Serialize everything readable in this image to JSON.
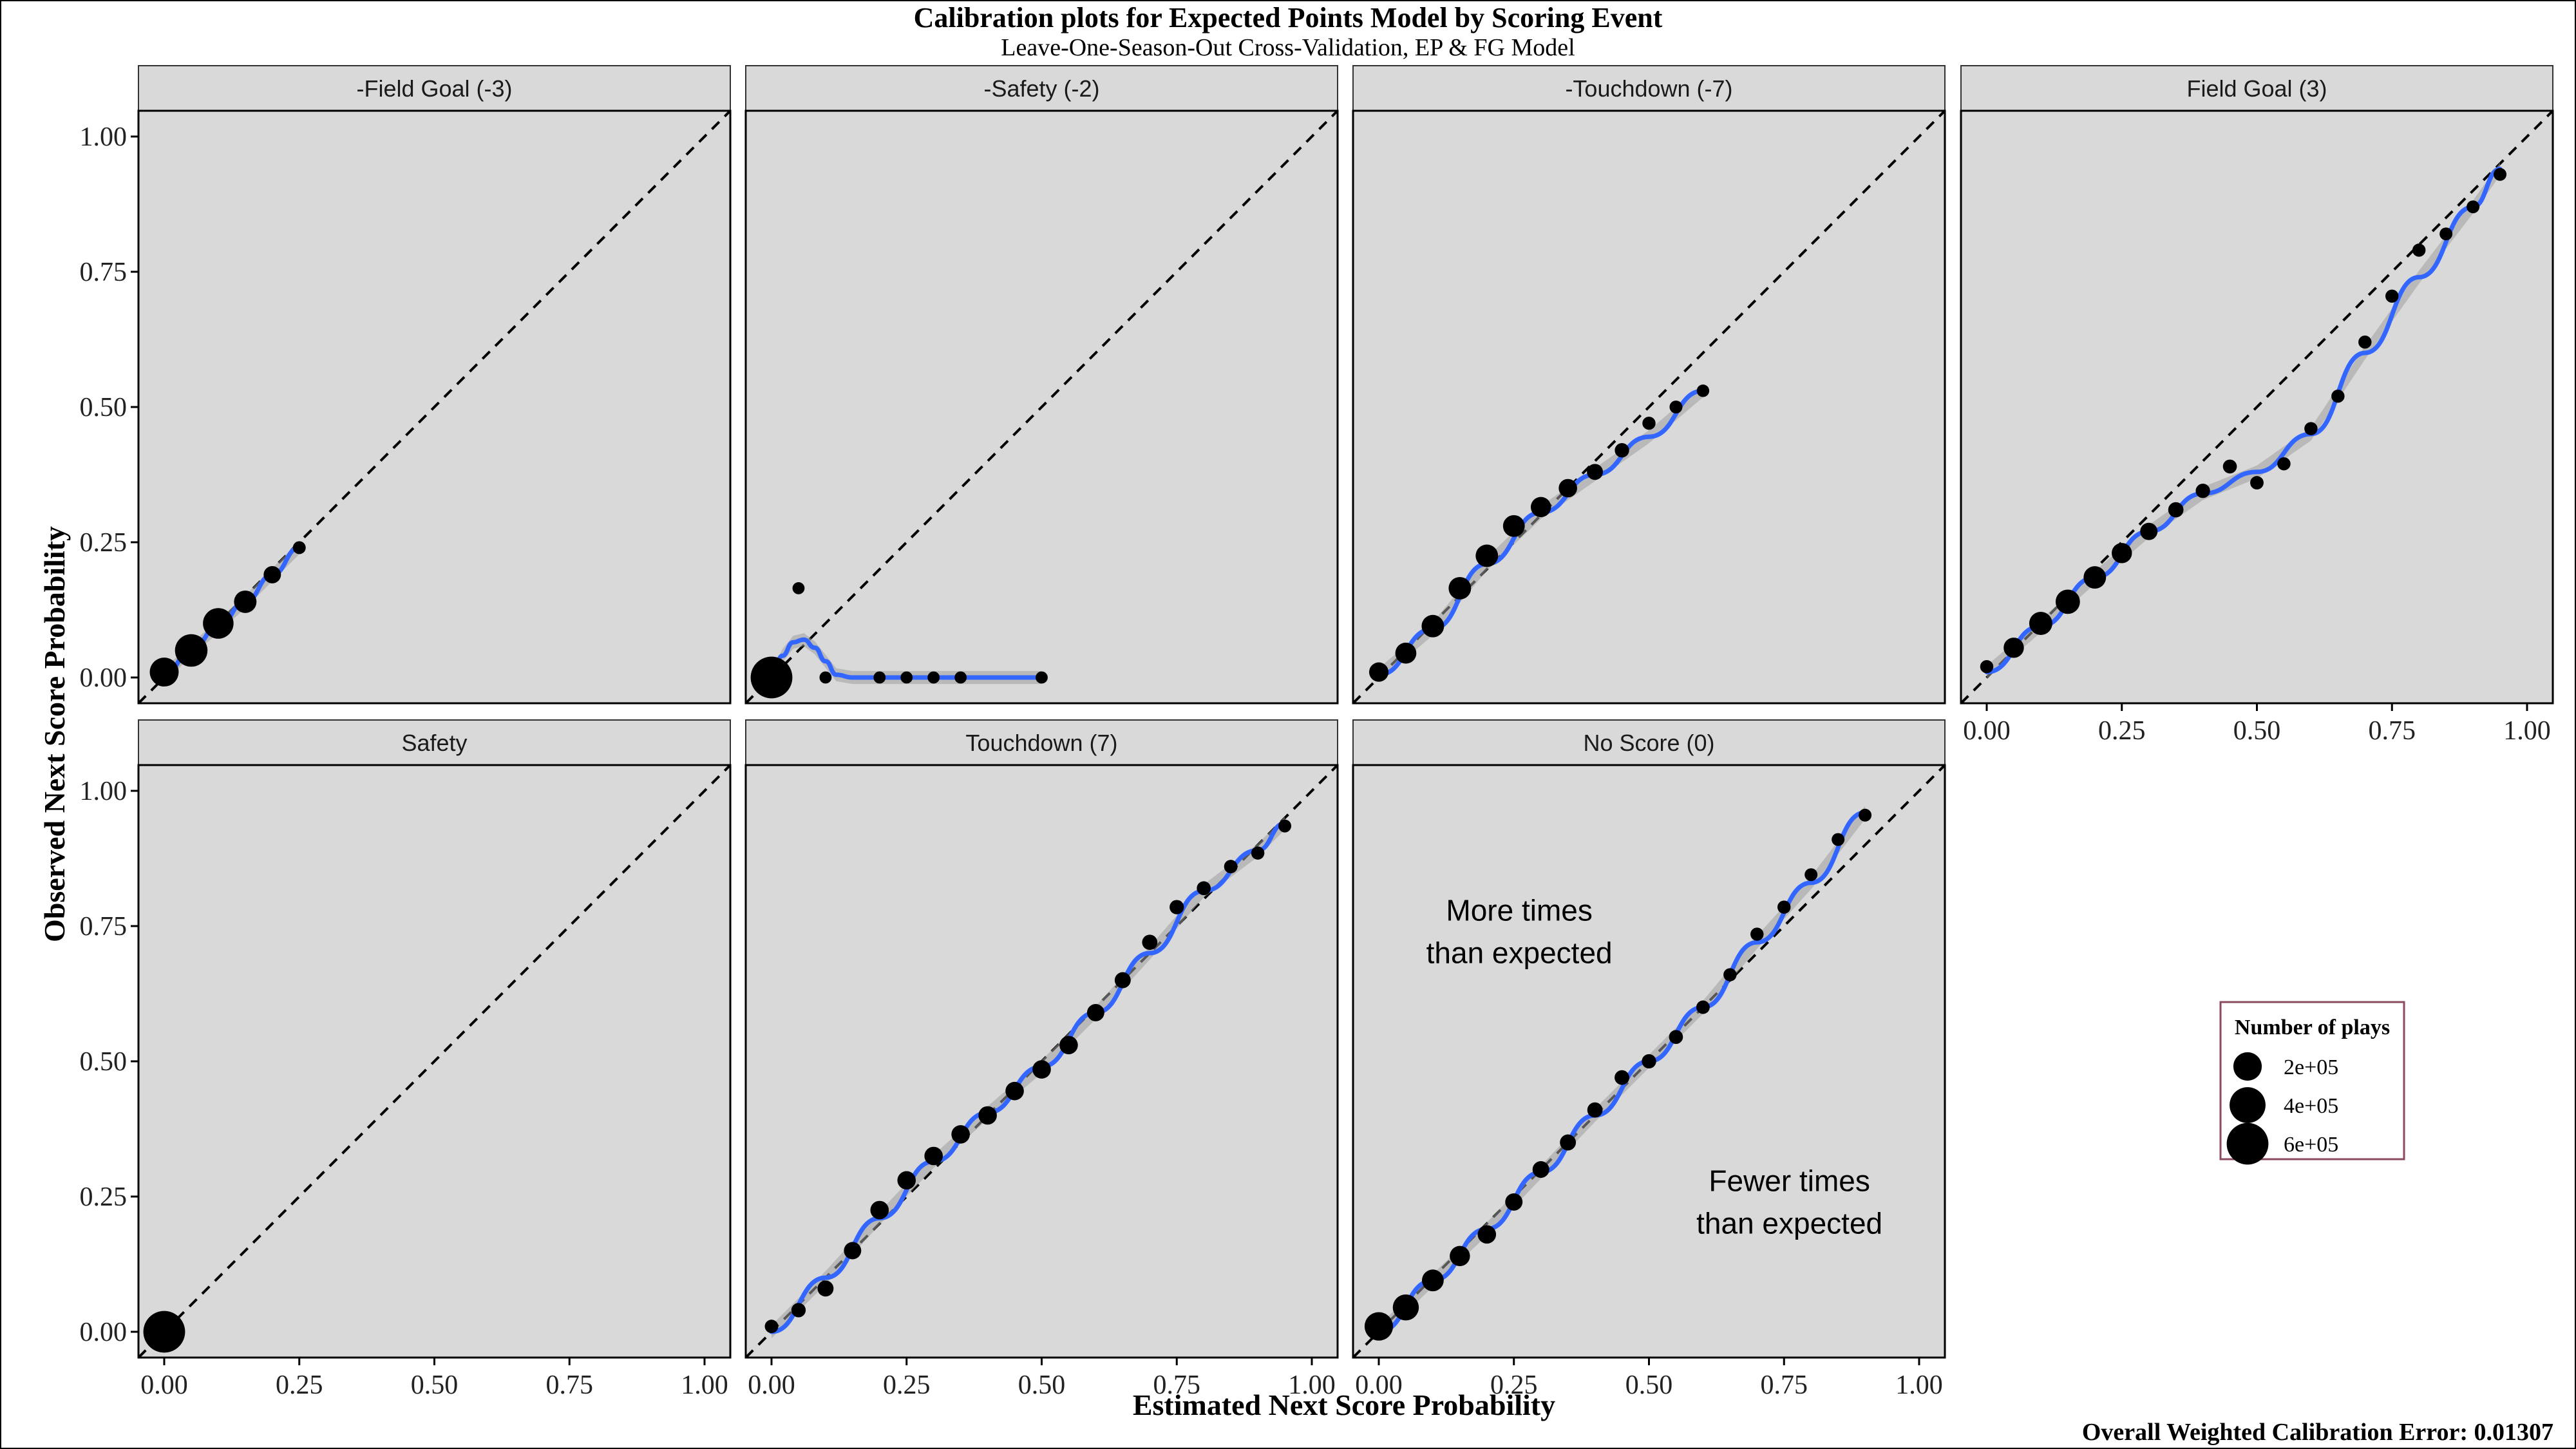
{
  "title": "Calibration plots for Expected Points Model by Scoring Event",
  "subtitle": "Leave-One-Season-Out Cross-Validation, EP & FG Model",
  "footer": "Overall Weighted Calibration Error: 0.01307",
  "chart_data": {
    "type": "scatter",
    "xlabel": "Estimated Next Score Probability",
    "ylabel": "Observed Next Score Probability",
    "xlim": [
      0,
      1
    ],
    "ylim": [
      0,
      1
    ],
    "x_ticks": [
      "0.00",
      "0.25",
      "0.50",
      "0.75",
      "1.00"
    ],
    "y_ticks": [
      "0.00",
      "0.25",
      "0.50",
      "0.75",
      "1.00"
    ],
    "reference_line": "y = x (dashed)",
    "legend": {
      "title": "Number of plays",
      "position": "bottom-right",
      "entries": [
        {
          "label": "2e+05",
          "n": 200000
        },
        {
          "label": "4e+05",
          "n": 400000
        },
        {
          "label": "6e+05",
          "n": 600000
        }
      ]
    },
    "panels": [
      {
        "name": "-Field Goal (-3)",
        "points": [
          [
            0.0,
            0.01,
            210000
          ],
          [
            0.05,
            0.05,
            300000
          ],
          [
            0.1,
            0.1,
            250000
          ],
          [
            0.15,
            0.14,
            90000
          ],
          [
            0.2,
            0.19,
            30000
          ],
          [
            0.25,
            0.24,
            4000
          ]
        ],
        "smooth": [
          [
            0,
            0.005
          ],
          [
            0.05,
            0.05
          ],
          [
            0.1,
            0.095
          ],
          [
            0.15,
            0.14
          ],
          [
            0.2,
            0.19
          ],
          [
            0.25,
            0.24
          ]
        ]
      },
      {
        "name": "-Safety (-2)",
        "points": [
          [
            0.0,
            0.0,
            600000
          ],
          [
            0.05,
            0.165,
            2000
          ],
          [
            0.1,
            0.0,
            2000
          ],
          [
            0.2,
            0.0,
            2000
          ],
          [
            0.25,
            0.0,
            2000
          ],
          [
            0.3,
            0.0,
            2000
          ],
          [
            0.35,
            0.0,
            2000
          ],
          [
            0.5,
            0.0,
            2000
          ]
        ],
        "smooth": [
          [
            0,
            0.0
          ],
          [
            0.02,
            0.04
          ],
          [
            0.04,
            0.065
          ],
          [
            0.06,
            0.07
          ],
          [
            0.08,
            0.055
          ],
          [
            0.1,
            0.03
          ],
          [
            0.12,
            0.005
          ],
          [
            0.15,
            0.0
          ],
          [
            0.5,
            0.0
          ]
        ]
      },
      {
        "name": "-Touchdown (-7)",
        "points": [
          [
            0.0,
            0.01,
            50000
          ],
          [
            0.05,
            0.045,
            70000
          ],
          [
            0.1,
            0.095,
            90000
          ],
          [
            0.15,
            0.165,
            90000
          ],
          [
            0.2,
            0.225,
            90000
          ],
          [
            0.25,
            0.28,
            80000
          ],
          [
            0.3,
            0.315,
            60000
          ],
          [
            0.35,
            0.35,
            40000
          ],
          [
            0.4,
            0.38,
            20000
          ],
          [
            0.45,
            0.42,
            10000
          ],
          [
            0.5,
            0.47,
            5000
          ],
          [
            0.55,
            0.5,
            4000
          ],
          [
            0.6,
            0.53,
            3000
          ]
        ],
        "smooth": [
          [
            0,
            0.005
          ],
          [
            0.1,
            0.09
          ],
          [
            0.2,
            0.21
          ],
          [
            0.3,
            0.305
          ],
          [
            0.4,
            0.375
          ],
          [
            0.5,
            0.445
          ],
          [
            0.6,
            0.53
          ]
        ]
      },
      {
        "name": "Field Goal (3)",
        "points": [
          [
            0.0,
            0.02,
            5000
          ],
          [
            0.05,
            0.055,
            60000
          ],
          [
            0.1,
            0.1,
            100000
          ],
          [
            0.15,
            0.14,
            120000
          ],
          [
            0.2,
            0.185,
            90000
          ],
          [
            0.25,
            0.23,
            60000
          ],
          [
            0.3,
            0.27,
            30000
          ],
          [
            0.35,
            0.31,
            15000
          ],
          [
            0.4,
            0.345,
            10000
          ],
          [
            0.45,
            0.39,
            8000
          ],
          [
            0.5,
            0.36,
            6000
          ],
          [
            0.55,
            0.395,
            5000
          ],
          [
            0.6,
            0.46,
            5000
          ],
          [
            0.65,
            0.52,
            5000
          ],
          [
            0.7,
            0.62,
            5000
          ],
          [
            0.75,
            0.705,
            5000
          ],
          [
            0.8,
            0.79,
            5000
          ],
          [
            0.85,
            0.82,
            4000
          ],
          [
            0.9,
            0.87,
            4000
          ],
          [
            0.95,
            0.93,
            4000
          ]
        ],
        "smooth": [
          [
            0.0,
            0.01
          ],
          [
            0.1,
            0.095
          ],
          [
            0.2,
            0.185
          ],
          [
            0.3,
            0.27
          ],
          [
            0.4,
            0.34
          ],
          [
            0.5,
            0.38
          ],
          [
            0.6,
            0.45
          ],
          [
            0.7,
            0.6
          ],
          [
            0.8,
            0.74
          ],
          [
            0.9,
            0.87
          ],
          [
            0.95,
            0.94
          ]
        ]
      },
      {
        "name": "Safety",
        "points": [
          [
            0.0,
            0.0,
            600000
          ]
        ],
        "smooth": []
      },
      {
        "name": "Touchdown (7)",
        "points": [
          [
            0.0,
            0.01,
            6000
          ],
          [
            0.05,
            0.04,
            10000
          ],
          [
            0.1,
            0.08,
            20000
          ],
          [
            0.15,
            0.15,
            30000
          ],
          [
            0.2,
            0.225,
            40000
          ],
          [
            0.25,
            0.28,
            40000
          ],
          [
            0.3,
            0.325,
            40000
          ],
          [
            0.35,
            0.365,
            40000
          ],
          [
            0.4,
            0.4,
            40000
          ],
          [
            0.45,
            0.445,
            40000
          ],
          [
            0.5,
            0.485,
            40000
          ],
          [
            0.55,
            0.53,
            40000
          ],
          [
            0.6,
            0.59,
            30000
          ],
          [
            0.65,
            0.65,
            20000
          ],
          [
            0.7,
            0.72,
            15000
          ],
          [
            0.75,
            0.785,
            10000
          ],
          [
            0.8,
            0.82,
            8000
          ],
          [
            0.85,
            0.86,
            6000
          ],
          [
            0.9,
            0.885,
            5000
          ],
          [
            0.95,
            0.935,
            4000
          ]
        ],
        "smooth": [
          [
            0.0,
            0.0
          ],
          [
            0.1,
            0.1
          ],
          [
            0.2,
            0.21
          ],
          [
            0.3,
            0.315
          ],
          [
            0.4,
            0.405
          ],
          [
            0.5,
            0.49
          ],
          [
            0.6,
            0.59
          ],
          [
            0.7,
            0.7
          ],
          [
            0.8,
            0.815
          ],
          [
            0.9,
            0.89
          ],
          [
            0.95,
            0.94
          ]
        ]
      },
      {
        "name": "No Score (0)",
        "points": [
          [
            0.0,
            0.01,
            200000
          ],
          [
            0.05,
            0.045,
            150000
          ],
          [
            0.1,
            0.095,
            80000
          ],
          [
            0.15,
            0.14,
            60000
          ],
          [
            0.2,
            0.18,
            40000
          ],
          [
            0.25,
            0.24,
            30000
          ],
          [
            0.3,
            0.3,
            25000
          ],
          [
            0.35,
            0.35,
            20000
          ],
          [
            0.4,
            0.41,
            15000
          ],
          [
            0.45,
            0.47,
            12000
          ],
          [
            0.5,
            0.5,
            10000
          ],
          [
            0.55,
            0.545,
            8000
          ],
          [
            0.6,
            0.6,
            6000
          ],
          [
            0.65,
            0.66,
            5000
          ],
          [
            0.7,
            0.735,
            5000
          ],
          [
            0.75,
            0.785,
            5000
          ],
          [
            0.8,
            0.845,
            4000
          ],
          [
            0.85,
            0.91,
            4000
          ],
          [
            0.9,
            0.955,
            4000
          ]
        ],
        "smooth": [
          [
            0.0,
            0.0
          ],
          [
            0.1,
            0.095
          ],
          [
            0.2,
            0.19
          ],
          [
            0.3,
            0.295
          ],
          [
            0.4,
            0.4
          ],
          [
            0.5,
            0.5
          ],
          [
            0.6,
            0.6
          ],
          [
            0.7,
            0.72
          ],
          [
            0.8,
            0.83
          ],
          [
            0.9,
            0.96
          ]
        ]
      }
    ],
    "annotations": [
      {
        "panel": "No Score (0)",
        "lines": [
          "More times",
          "than expected"
        ],
        "x": 0.26,
        "y": 0.76
      },
      {
        "panel": "No Score (0)",
        "lines": [
          "Fewer times",
          "than expected"
        ],
        "x": 0.76,
        "y": 0.26
      }
    ]
  }
}
